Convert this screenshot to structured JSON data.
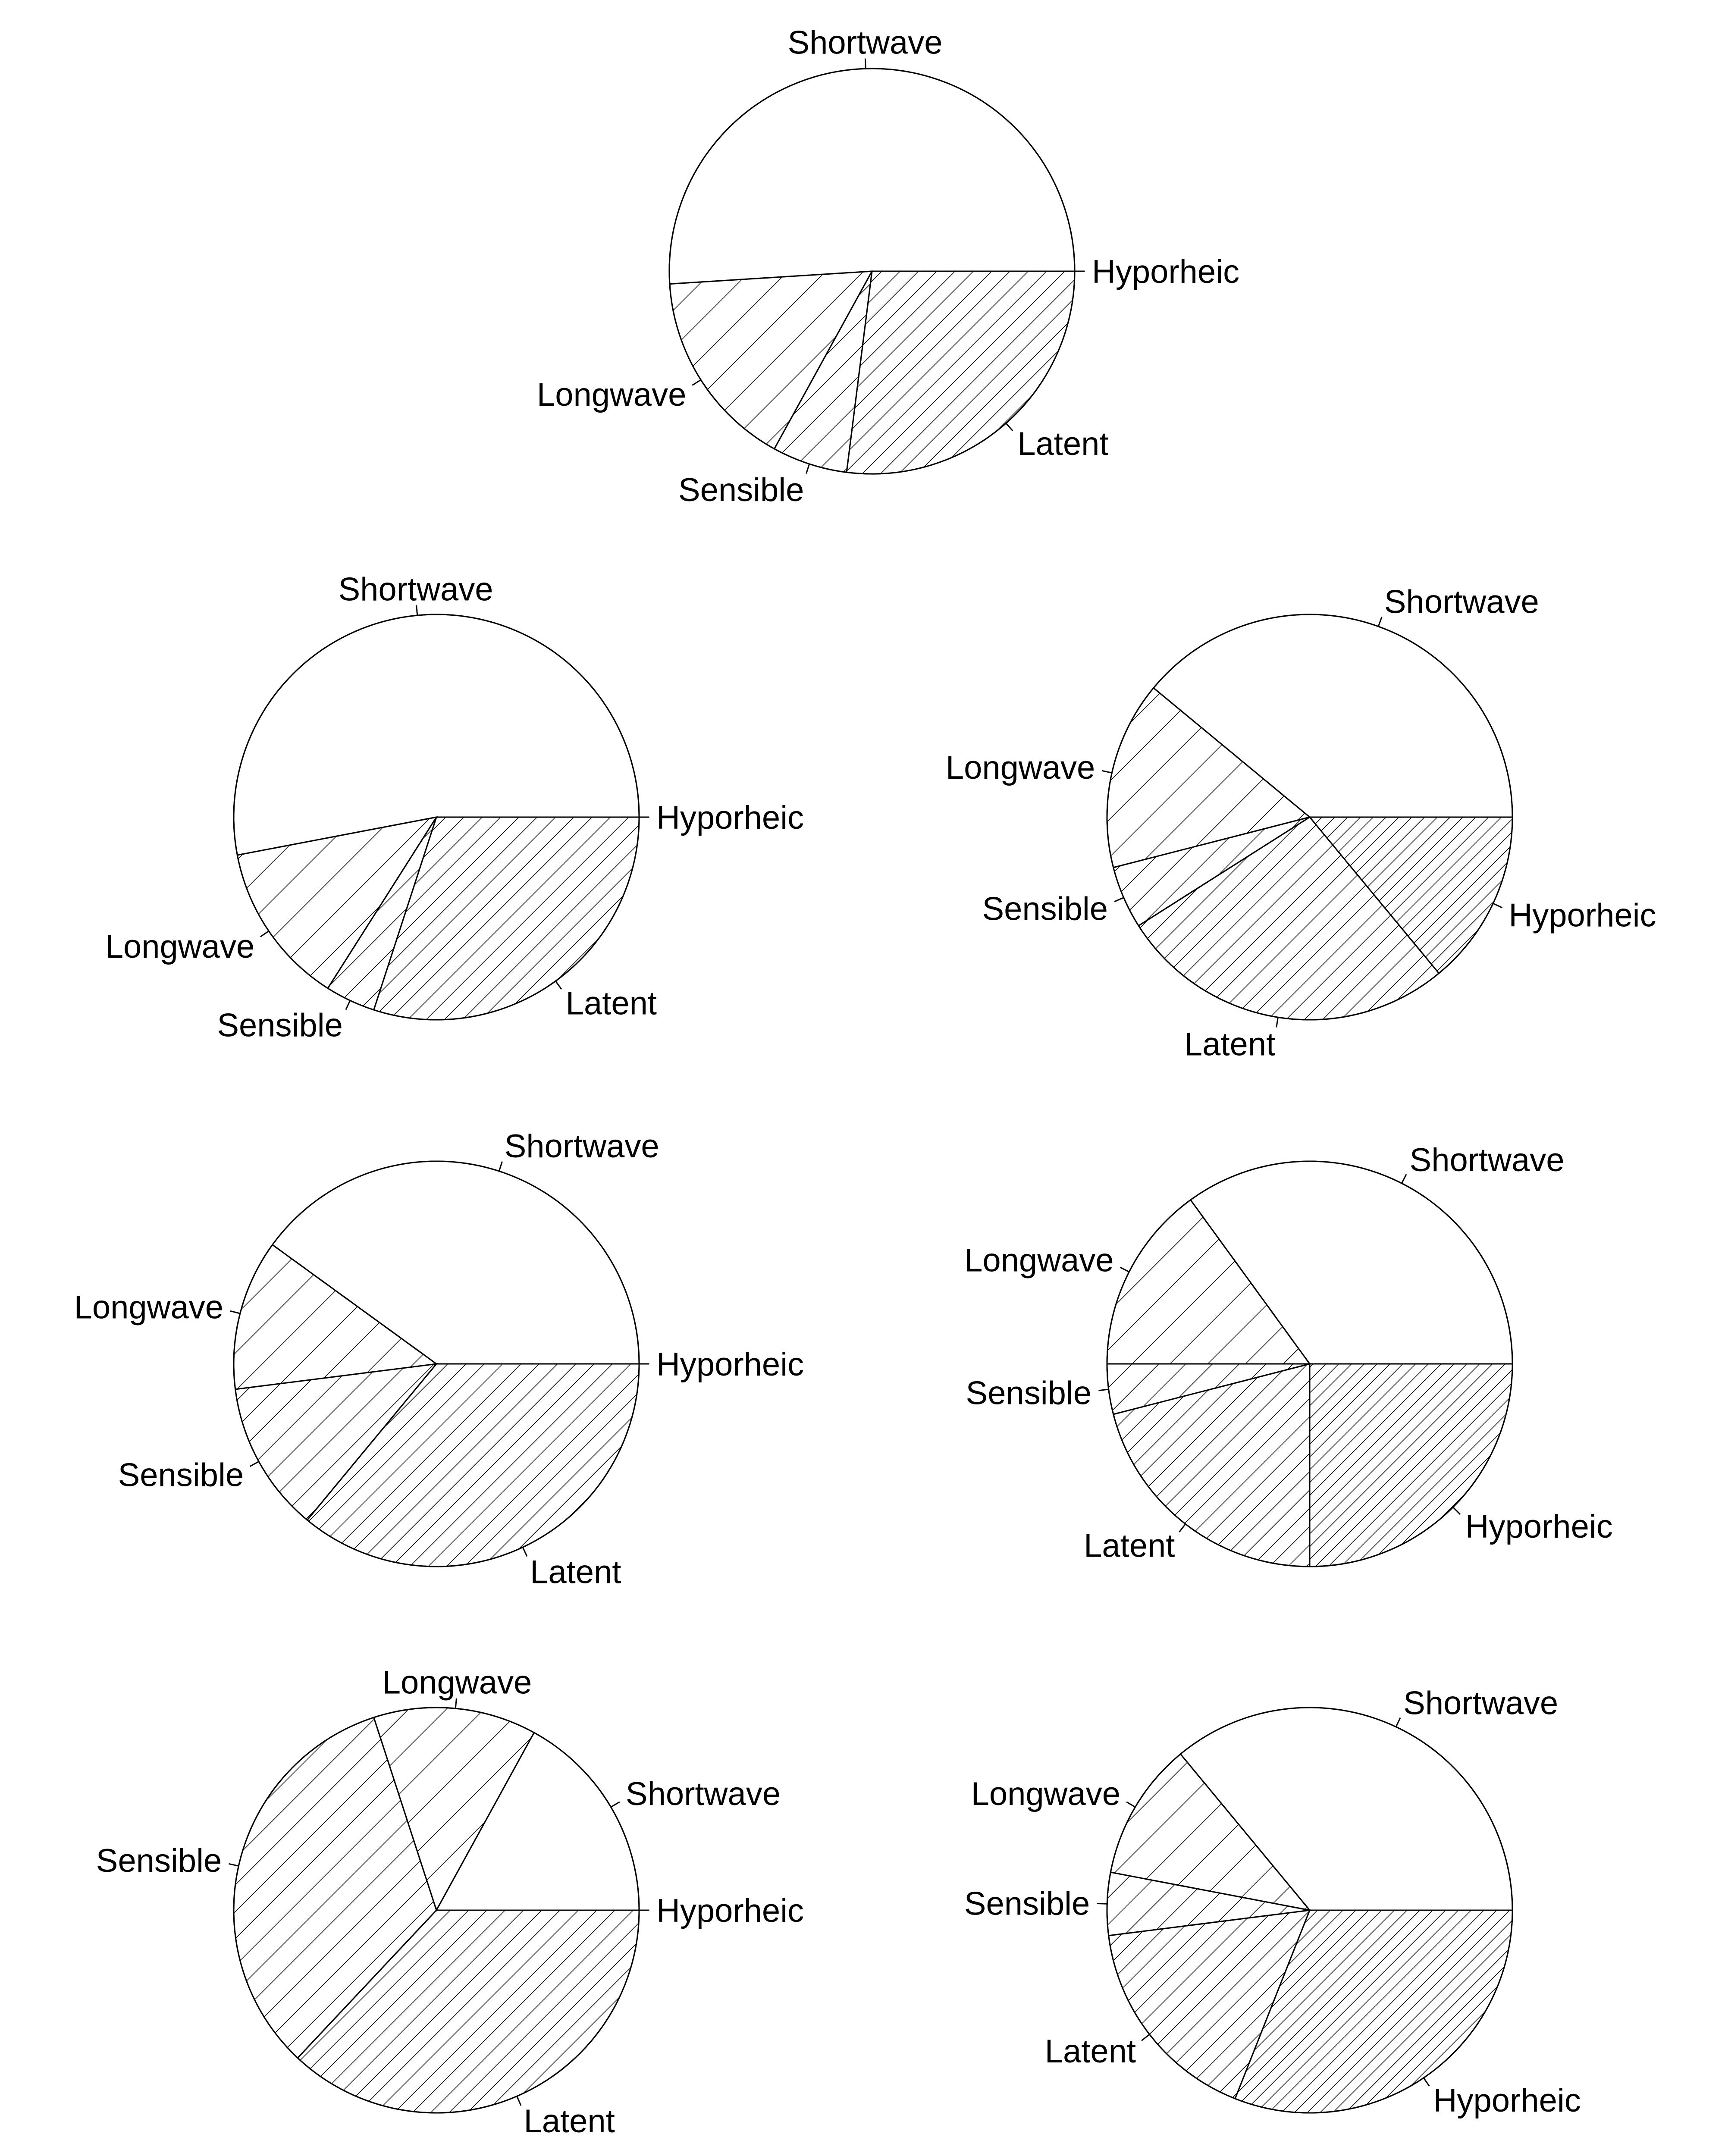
{
  "chart_data": [
    {
      "type": "pie",
      "slices": [
        {
          "name": "Hyporheic",
          "value": 0.0,
          "pattern": "none"
        },
        {
          "name": "Shortwave",
          "value": 51.0,
          "pattern": "none"
        },
        {
          "name": "Longwave",
          "value": 16.0,
          "pattern": "hatch-sparse"
        },
        {
          "name": "Sensible",
          "value": 6.0,
          "pattern": "hatch-medium"
        },
        {
          "name": "Latent",
          "value": 27.0,
          "pattern": "hatch-dense"
        }
      ]
    },
    {
      "type": "pie",
      "slices": [
        {
          "name": "Hyporheic",
          "value": 0.0,
          "pattern": "none"
        },
        {
          "name": "Shortwave",
          "value": 53.0,
          "pattern": "none"
        },
        {
          "name": "Longwave",
          "value": 13.0,
          "pattern": "hatch-sparse"
        },
        {
          "name": "Sensible",
          "value": 4.0,
          "pattern": "hatch-medium"
        },
        {
          "name": "Latent",
          "value": 30.0,
          "pattern": "hatch-dense"
        }
      ]
    },
    {
      "type": "pie",
      "slices": [
        {
          "name": "Shortwave",
          "value": 39.0,
          "pattern": "none"
        },
        {
          "name": "Longwave",
          "value": 15.0,
          "pattern": "hatch-sparse"
        },
        {
          "name": "Sensible",
          "value": 5.0,
          "pattern": "hatch-medium"
        },
        {
          "name": "Latent",
          "value": 27.0,
          "pattern": "hatch-dense"
        },
        {
          "name": "Hyporheic",
          "value": 14.0,
          "pattern": "hatch-densest"
        }
      ]
    },
    {
      "type": "pie",
      "slices": [
        {
          "name": "Hyporheic",
          "value": 0.0,
          "pattern": "none"
        },
        {
          "name": "Shortwave",
          "value": 40.0,
          "pattern": "none"
        },
        {
          "name": "Longwave",
          "value": 12.0,
          "pattern": "hatch-sparse"
        },
        {
          "name": "Sensible",
          "value": 12.0,
          "pattern": "hatch-medium"
        },
        {
          "name": "Latent",
          "value": 36.0,
          "pattern": "hatch-dense"
        }
      ]
    },
    {
      "type": "pie",
      "slices": [
        {
          "name": "Shortwave",
          "value": 35.0,
          "pattern": "none"
        },
        {
          "name": "Longwave",
          "value": 15.0,
          "pattern": "hatch-sparse"
        },
        {
          "name": "Sensible",
          "value": 4.0,
          "pattern": "hatch-medium"
        },
        {
          "name": "Latent",
          "value": 21.0,
          "pattern": "hatch-dense"
        },
        {
          "name": "Hyporheic",
          "value": 25.0,
          "pattern": "hatch-densest"
        }
      ]
    },
    {
      "type": "pie",
      "slices": [
        {
          "name": "Hyporheic",
          "value": 0.0,
          "pattern": "none"
        },
        {
          "name": "Shortwave",
          "value": 17.0,
          "pattern": "none"
        },
        {
          "name": "Longwave",
          "value": 13.0,
          "pattern": "hatch-sparse"
        },
        {
          "name": "Sensible",
          "value": 33.0,
          "pattern": "hatch-medium"
        },
        {
          "name": "Latent",
          "value": 37.0,
          "pattern": "hatch-dense"
        }
      ]
    },
    {
      "type": "pie",
      "slices": [
        {
          "name": "Shortwave",
          "value": 36.0,
          "pattern": "none"
        },
        {
          "name": "Longwave",
          "value": 11.0,
          "pattern": "hatch-sparse"
        },
        {
          "name": "Sensible",
          "value": 5.0,
          "pattern": "hatch-medium"
        },
        {
          "name": "Latent",
          "value": 17.0,
          "pattern": "hatch-dense"
        },
        {
          "name": "Hyporheic",
          "value": 31.0,
          "pattern": "hatch-densest"
        }
      ]
    }
  ]
}
